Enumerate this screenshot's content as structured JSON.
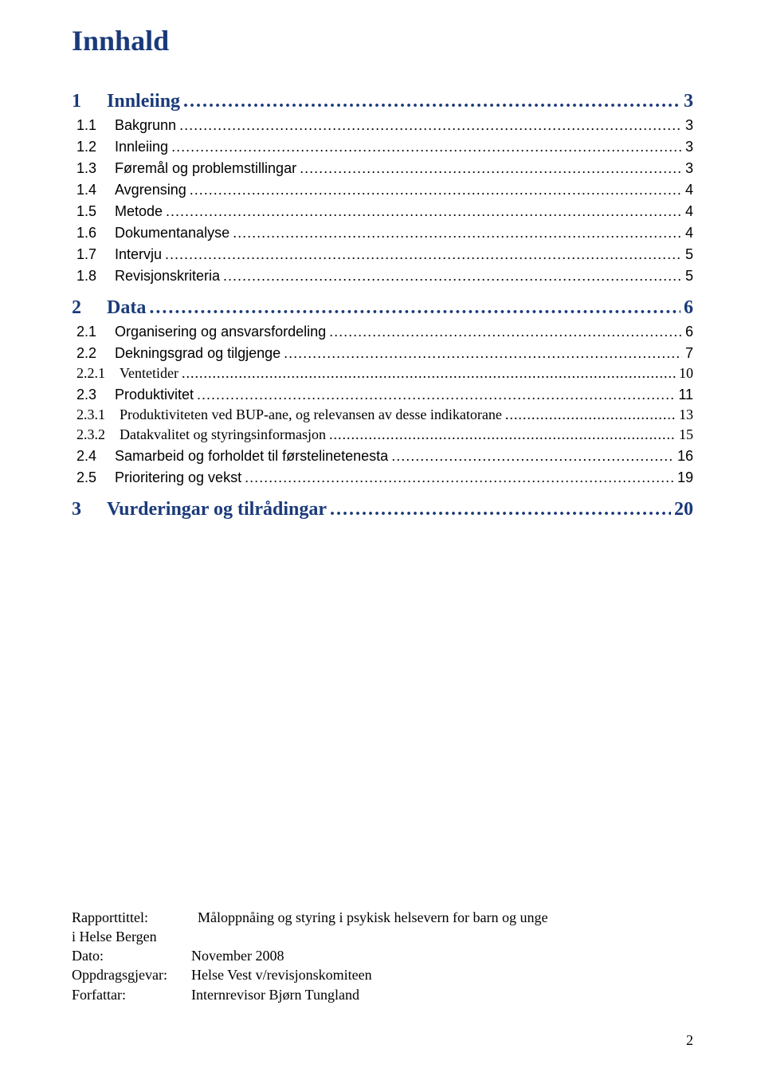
{
  "colors": {
    "heading": "#1a3a7a",
    "body": "#000000",
    "background": "#ffffff"
  },
  "title": "Innhald",
  "toc": [
    {
      "level": 1,
      "num": "1",
      "label": "Innleiing",
      "page": "3"
    },
    {
      "level": 2,
      "num": "1.1",
      "label": "Bakgrunn",
      "page": "3"
    },
    {
      "level": 2,
      "num": "1.2",
      "label": "Innleiing",
      "page": "3"
    },
    {
      "level": 2,
      "num": "1.3",
      "label": "Føremål og problemstillingar",
      "page": "3"
    },
    {
      "level": 2,
      "num": "1.4",
      "label": "Avgrensing",
      "page": "4"
    },
    {
      "level": 2,
      "num": "1.5",
      "label": "Metode",
      "page": "4"
    },
    {
      "level": 2,
      "num": "1.6",
      "label": "Dokumentanalyse",
      "page": "4"
    },
    {
      "level": 2,
      "num": "1.7",
      "label": "Intervju",
      "page": "5"
    },
    {
      "level": 2,
      "num": "1.8",
      "label": "Revisjonskriteria",
      "page": "5"
    },
    {
      "level": 1,
      "num": "2",
      "label": "Data",
      "page": "6"
    },
    {
      "level": 2,
      "num": "2.1",
      "label": "Organisering og ansvarsfordeling",
      "page": "6"
    },
    {
      "level": 2,
      "num": "2.2",
      "label": "Dekningsgrad og tilgjenge",
      "page": "7"
    },
    {
      "level": 3,
      "num": "2.2.1",
      "label": "Ventetider",
      "page": "10"
    },
    {
      "level": 2,
      "num": "2.3",
      "label": "Produktivitet",
      "page": "11"
    },
    {
      "level": 3,
      "num": "2.3.1",
      "label": "Produktiviteten ved BUP-ane, og relevansen av desse indikatorane",
      "page": "13"
    },
    {
      "level": 3,
      "num": "2.3.2",
      "label": "Datakvalitet og styringsinformasjon",
      "page": "15"
    },
    {
      "level": 2,
      "num": "2.4",
      "label": "Samarbeid og forholdet til førstelinetenesta",
      "page": "16"
    },
    {
      "level": 2,
      "num": "2.5",
      "label": "Prioritering og vekst",
      "page": "19"
    },
    {
      "level": 1,
      "num": "3",
      "label": "Vurderingar og tilrådingar",
      "page": "20"
    }
  ],
  "meta": {
    "rapporttittel_label": "Rapporttittel:",
    "rapporttittel_value": "Måloppnåing og styring i psykisk helsevern for barn og unge",
    "rapporttittel_line2": " i Helse Bergen",
    "dato_label": "Dato:",
    "dato_value": "November 2008",
    "oppdragsgjevar_label": "Oppdragsgjevar:",
    "oppdragsgjevar_value": "Helse Vest v/revisjonskomiteen",
    "forfattar_label": "Forfattar:",
    "forfattar_value": "Internrevisor Bjørn Tungland"
  },
  "page_number": "2"
}
